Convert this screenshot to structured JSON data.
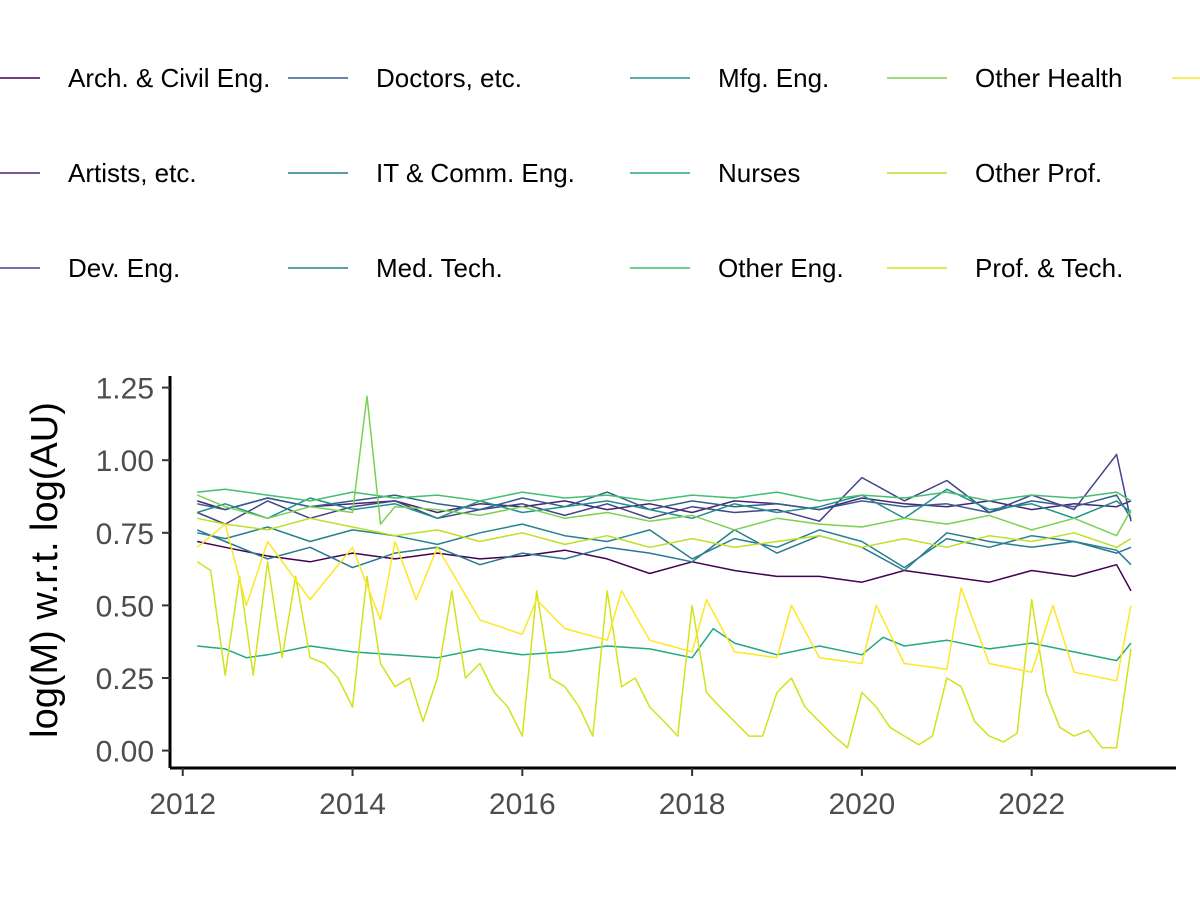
{
  "chart_data": {
    "type": "line",
    "xlabel": "",
    "ylabel": "log(M) w.r.t. log(AU)",
    "xlim": [
      2011.85,
      2023.7
    ],
    "ylim": [
      -0.06,
      1.29
    ],
    "x_ticks": [
      2012,
      2014,
      2016,
      2018,
      2020,
      2022
    ],
    "x_tick_labels": [
      "2012",
      "2014",
      "2016",
      "2018",
      "2020",
      "2022"
    ],
    "y_ticks": [
      0,
      0.25,
      0.5,
      0.75,
      1.0,
      1.25
    ],
    "y_tick_labels": [
      "0.00",
      "0.25",
      "0.50",
      "0.75",
      "1.00",
      "1.25"
    ],
    "grid": false,
    "legend_position": "top",
    "series": [
      {
        "name": "Arch. & Civil Eng.",
        "color": "#440154",
        "x": [
          2012.17,
          2012.5,
          2013.0,
          2013.5,
          2014.0,
          2014.5,
          2015.0,
          2015.5,
          2016.0,
          2016.5,
          2017.0,
          2017.5,
          2018.0,
          2018.5,
          2019.0,
          2019.5,
          2020.0,
          2020.5,
          2021.0,
          2021.5,
          2022.0,
          2022.5,
          2023.0,
          2023.17
        ],
        "values": [
          0.72,
          0.7,
          0.67,
          0.65,
          0.68,
          0.66,
          0.68,
          0.66,
          0.67,
          0.69,
          0.66,
          0.61,
          0.65,
          0.62,
          0.6,
          0.6,
          0.58,
          0.62,
          0.6,
          0.58,
          0.62,
          0.6,
          0.64,
          0.55
        ]
      },
      {
        "name": "Artists, etc.",
        "color": "#482475",
        "x": [
          2012.17,
          2012.5,
          2013.0,
          2013.5,
          2014.0,
          2014.5,
          2015.0,
          2015.5,
          2016.0,
          2016.5,
          2017.0,
          2017.5,
          2018.0,
          2018.5,
          2019.0,
          2019.5,
          2020.0,
          2020.5,
          2021.0,
          2021.5,
          2022.0,
          2022.5,
          2023.0,
          2023.17
        ],
        "values": [
          0.86,
          0.83,
          0.87,
          0.84,
          0.85,
          0.86,
          0.82,
          0.85,
          0.84,
          0.86,
          0.83,
          0.85,
          0.82,
          0.86,
          0.85,
          0.83,
          0.87,
          0.85,
          0.84,
          0.86,
          0.83,
          0.85,
          0.84,
          0.86
        ]
      },
      {
        "name": "Dev. Eng.",
        "color": "#414487",
        "x": [
          2012.17,
          2012.5,
          2013.0,
          2013.5,
          2014.0,
          2014.5,
          2015.0,
          2015.5,
          2016.0,
          2016.5,
          2017.0,
          2017.5,
          2018.0,
          2018.5,
          2019.0,
          2019.5,
          2020.0,
          2020.5,
          2021.0,
          2021.5,
          2022.0,
          2022.5,
          2023.0,
          2023.17
        ],
        "values": [
          0.82,
          0.78,
          0.86,
          0.8,
          0.84,
          0.86,
          0.8,
          0.83,
          0.85,
          0.81,
          0.85,
          0.8,
          0.84,
          0.82,
          0.83,
          0.79,
          0.94,
          0.86,
          0.93,
          0.82,
          0.88,
          0.83,
          1.02,
          0.79
        ]
      },
      {
        "name": "Doctors, etc.",
        "color": "#355f8d",
        "x": [
          2012.17,
          2012.5,
          2013.0,
          2013.5,
          2014.0,
          2014.5,
          2015.0,
          2015.5,
          2016.0,
          2016.5,
          2017.0,
          2017.5,
          2018.0,
          2018.5,
          2019.0,
          2019.5,
          2020.0,
          2020.5,
          2021.0,
          2021.5,
          2022.0,
          2022.5,
          2023.0,
          2023.17
        ],
        "values": [
          0.85,
          0.83,
          0.87,
          0.84,
          0.86,
          0.88,
          0.85,
          0.83,
          0.87,
          0.84,
          0.89,
          0.83,
          0.86,
          0.84,
          0.85,
          0.83,
          0.86,
          0.84,
          0.85,
          0.82,
          0.86,
          0.84,
          0.88,
          0.8
        ]
      },
      {
        "name": "IT & Comm. Eng.",
        "color": "#2a788e",
        "x": [
          2012.17,
          2012.5,
          2013.0,
          2013.5,
          2014.0,
          2014.5,
          2015.0,
          2015.5,
          2016.0,
          2016.5,
          2017.0,
          2017.5,
          2018.0,
          2018.5,
          2019.0,
          2019.5,
          2020.0,
          2020.5,
          2021.0,
          2021.5,
          2022.0,
          2022.5,
          2023.0,
          2023.17
        ],
        "values": [
          0.76,
          0.72,
          0.66,
          0.7,
          0.63,
          0.68,
          0.7,
          0.64,
          0.68,
          0.66,
          0.7,
          0.68,
          0.65,
          0.76,
          0.68,
          0.74,
          0.7,
          0.62,
          0.75,
          0.72,
          0.7,
          0.72,
          0.68,
          0.7
        ]
      },
      {
        "name": "Med. Tech.",
        "color": "#26828e",
        "x": [
          2012.17,
          2012.5,
          2013.0,
          2013.5,
          2014.0,
          2014.5,
          2015.0,
          2015.5,
          2016.0,
          2016.5,
          2017.0,
          2017.5,
          2018.0,
          2018.5,
          2019.0,
          2019.5,
          2020.0,
          2020.5,
          2021.0,
          2021.5,
          2022.0,
          2022.5,
          2023.0,
          2023.17
        ],
        "values": [
          0.75,
          0.73,
          0.77,
          0.72,
          0.76,
          0.74,
          0.71,
          0.75,
          0.78,
          0.74,
          0.72,
          0.76,
          0.66,
          0.73,
          0.7,
          0.76,
          0.72,
          0.63,
          0.73,
          0.7,
          0.74,
          0.72,
          0.69,
          0.64
        ]
      },
      {
        "name": "Mfg. Eng.",
        "color": "#21908d",
        "x": [
          2012.17,
          2012.5,
          2013.0,
          2013.5,
          2014.0,
          2014.5,
          2015.0,
          2015.5,
          2016.0,
          2016.5,
          2017.0,
          2017.5,
          2018.0,
          2018.5,
          2019.0,
          2019.5,
          2020.0,
          2020.5,
          2021.0,
          2021.5,
          2022.0,
          2022.5,
          2023.0,
          2023.17
        ],
        "values": [
          0.82,
          0.85,
          0.8,
          0.87,
          0.83,
          0.85,
          0.8,
          0.86,
          0.82,
          0.84,
          0.86,
          0.83,
          0.8,
          0.85,
          0.82,
          0.84,
          0.88,
          0.8,
          0.9,
          0.83,
          0.85,
          0.8,
          0.86,
          0.82
        ]
      },
      {
        "name": "Nurses",
        "color": "#22a884",
        "x": [
          2012.17,
          2012.5,
          2012.75,
          2013.0,
          2013.5,
          2014.0,
          2014.5,
          2015.0,
          2015.5,
          2016.0,
          2016.5,
          2017.0,
          2017.5,
          2018.0,
          2018.25,
          2018.5,
          2019.0,
          2019.5,
          2020.0,
          2020.25,
          2020.5,
          2021.0,
          2021.5,
          2022.0,
          2022.5,
          2023.0,
          2023.17
        ],
        "values": [
          0.36,
          0.35,
          0.32,
          0.33,
          0.36,
          0.34,
          0.33,
          0.32,
          0.35,
          0.33,
          0.34,
          0.36,
          0.35,
          0.32,
          0.42,
          0.37,
          0.33,
          0.36,
          0.33,
          0.39,
          0.36,
          0.38,
          0.35,
          0.37,
          0.34,
          0.31,
          0.37
        ]
      },
      {
        "name": "Other Eng.",
        "color": "#44bf70",
        "x": [
          2012.17,
          2012.5,
          2013.0,
          2013.5,
          2014.0,
          2014.5,
          2015.0,
          2015.5,
          2016.0,
          2016.5,
          2017.0,
          2017.5,
          2018.0,
          2018.5,
          2019.0,
          2019.5,
          2020.0,
          2020.5,
          2021.0,
          2021.5,
          2022.0,
          2022.5,
          2023.0,
          2023.17
        ],
        "values": [
          0.89,
          0.9,
          0.88,
          0.86,
          0.89,
          0.87,
          0.88,
          0.86,
          0.89,
          0.87,
          0.88,
          0.86,
          0.88,
          0.87,
          0.89,
          0.86,
          0.88,
          0.87,
          0.89,
          0.86,
          0.88,
          0.87,
          0.89,
          0.86
        ]
      },
      {
        "name": "Other Health",
        "color": "#7ad151",
        "x": [
          2012.17,
          2012.5,
          2013.0,
          2013.5,
          2014.0,
          2014.17,
          2014.33,
          2014.5,
          2015.0,
          2015.5,
          2016.0,
          2016.5,
          2017.0,
          2017.5,
          2018.0,
          2018.5,
          2019.0,
          2019.5,
          2020.0,
          2020.5,
          2021.0,
          2021.5,
          2022.0,
          2022.5,
          2023.0,
          2023.17
        ],
        "values": [
          0.88,
          0.84,
          0.8,
          0.84,
          0.82,
          1.22,
          0.78,
          0.84,
          0.83,
          0.81,
          0.84,
          0.8,
          0.82,
          0.79,
          0.81,
          0.76,
          0.8,
          0.78,
          0.77,
          0.8,
          0.78,
          0.81,
          0.76,
          0.8,
          0.74,
          0.83
        ]
      },
      {
        "name": "Other Prof.",
        "color": "#bddf26",
        "x": [
          2012.17,
          2012.5,
          2013.0,
          2013.5,
          2014.0,
          2014.5,
          2015.0,
          2015.5,
          2016.0,
          2016.5,
          2017.0,
          2017.5,
          2018.0,
          2018.5,
          2019.0,
          2019.5,
          2020.0,
          2020.5,
          2021.0,
          2021.5,
          2022.0,
          2022.5,
          2023.0,
          2023.17
        ],
        "values": [
          0.8,
          0.78,
          0.76,
          0.8,
          0.77,
          0.74,
          0.76,
          0.72,
          0.75,
          0.71,
          0.74,
          0.7,
          0.73,
          0.7,
          0.72,
          0.74,
          0.7,
          0.73,
          0.7,
          0.74,
          0.72,
          0.75,
          0.7,
          0.73
        ]
      },
      {
        "name": "Prof. & Tech.",
        "color": "#d2e21b",
        "x": [
          2012.17,
          2012.33,
          2012.5,
          2012.67,
          2012.83,
          2013.0,
          2013.17,
          2013.33,
          2013.5,
          2013.67,
          2013.83,
          2014.0,
          2014.17,
          2014.33,
          2014.5,
          2014.67,
          2014.83,
          2015.0,
          2015.17,
          2015.33,
          2015.5,
          2015.67,
          2015.83,
          2016.0,
          2016.17,
          2016.33,
          2016.5,
          2016.67,
          2016.83,
          2017.0,
          2017.17,
          2017.33,
          2017.5,
          2017.67,
          2017.83,
          2018.0,
          2018.17,
          2018.33,
          2018.5,
          2018.67,
          2018.83,
          2019.0,
          2019.17,
          2019.33,
          2019.5,
          2019.67,
          2019.83,
          2020.0,
          2020.17,
          2020.33,
          2020.5,
          2020.67,
          2020.83,
          2021.0,
          2021.17,
          2021.33,
          2021.5,
          2021.67,
          2021.83,
          2022.0,
          2022.17,
          2022.33,
          2022.5,
          2022.67,
          2022.83,
          2023.0,
          2023.17
        ],
        "values": [
          0.65,
          0.62,
          0.26,
          0.6,
          0.26,
          0.65,
          0.32,
          0.6,
          0.32,
          0.3,
          0.25,
          0.15,
          0.6,
          0.3,
          0.22,
          0.25,
          0.1,
          0.25,
          0.55,
          0.25,
          0.3,
          0.2,
          0.15,
          0.05,
          0.55,
          0.25,
          0.22,
          0.15,
          0.05,
          0.55,
          0.22,
          0.25,
          0.15,
          0.1,
          0.05,
          0.5,
          0.2,
          0.15,
          0.1,
          0.05,
          0.05,
          0.2,
          0.25,
          0.15,
          0.1,
          0.05,
          0.01,
          0.2,
          0.15,
          0.08,
          0.05,
          0.02,
          0.05,
          0.25,
          0.22,
          0.1,
          0.05,
          0.03,
          0.06,
          0.52,
          0.2,
          0.08,
          0.05,
          0.07,
          0.01,
          0.01,
          0.35
        ]
      },
      {
        "name": "",
        "color": "#fde725",
        "x": [
          2012.17,
          2012.5,
          2012.75,
          2013.0,
          2013.5,
          2014.0,
          2014.33,
          2014.5,
          2014.75,
          2015.0,
          2015.5,
          2016.0,
          2016.17,
          2016.5,
          2017.0,
          2017.17,
          2017.5,
          2018.0,
          2018.17,
          2018.5,
          2019.0,
          2019.17,
          2019.5,
          2020.0,
          2020.17,
          2020.5,
          2021.0,
          2021.17,
          2021.5,
          2022.0,
          2022.25,
          2022.5,
          2023.0,
          2023.17
        ],
        "values": [
          0.7,
          0.78,
          0.5,
          0.72,
          0.52,
          0.7,
          0.45,
          0.72,
          0.52,
          0.7,
          0.45,
          0.4,
          0.52,
          0.42,
          0.38,
          0.55,
          0.38,
          0.34,
          0.52,
          0.34,
          0.32,
          0.5,
          0.32,
          0.3,
          0.5,
          0.3,
          0.28,
          0.56,
          0.3,
          0.27,
          0.5,
          0.27,
          0.24,
          0.5
        ]
      }
    ]
  }
}
